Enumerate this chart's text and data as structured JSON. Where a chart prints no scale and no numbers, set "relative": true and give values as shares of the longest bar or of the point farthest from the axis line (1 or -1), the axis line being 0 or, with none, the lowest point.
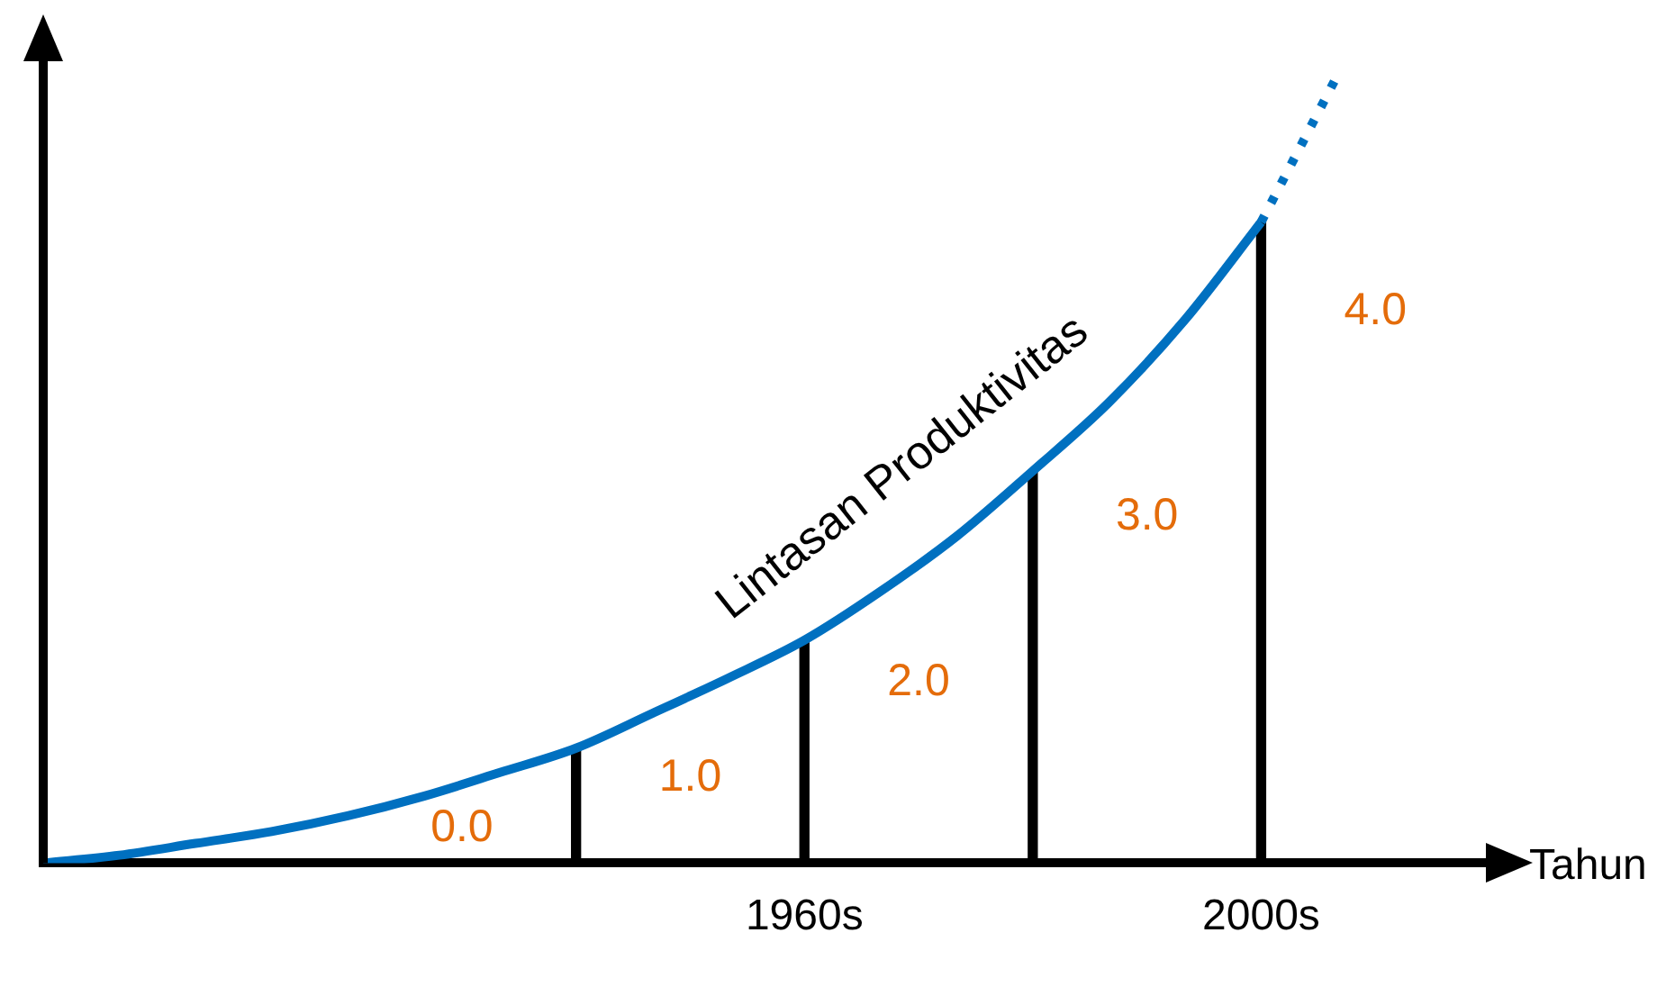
{
  "chart_data": {
    "type": "line",
    "relative": true,
    "xlabel": "Tahun",
    "grid": false,
    "legend": false,
    "tick_labels": "x",
    "marker": "none",
    "categories": [
      null,
      null,
      null,
      null,
      null,
      null,
      null,
      null,
      null,
      null,
      "1960s",
      null,
      null,
      null,
      null,
      null,
      "2000s",
      null,
      null,
      null
    ],
    "series": [
      {
        "name": "Lintasan Produktivitas",
        "color": "#0070c0",
        "line_style": "solid",
        "values": [
          0,
          0.01,
          0.025,
          0.04,
          0.06,
          0.085,
          0.115,
          0.146,
          0.19,
          0.235,
          0.283,
          0.345,
          0.415,
          0.498,
          0.585,
          0.69,
          0.814,
          null,
          null,
          null
        ]
      },
      {
        "color": "#0070c0",
        "line_style": "dotted",
        "values": [
          null,
          null,
          null,
          null,
          null,
          null,
          null,
          null,
          null,
          null,
          null,
          null,
          null,
          null,
          null,
          null,
          0.814,
          1,
          null,
          null
        ]
      },
      {
        "type": "bar",
        "color": "#000000",
        "values": [
          null,
          null,
          null,
          null,
          null,
          null,
          null,
          0.146,
          null,
          null,
          0.283,
          null,
          null,
          0.498,
          null,
          null,
          0.814,
          null,
          null,
          null
        ]
      }
    ],
    "annotations": [
      "0.0",
      "1.0",
      "2.0",
      "3.0",
      "4.0"
    ]
  }
}
